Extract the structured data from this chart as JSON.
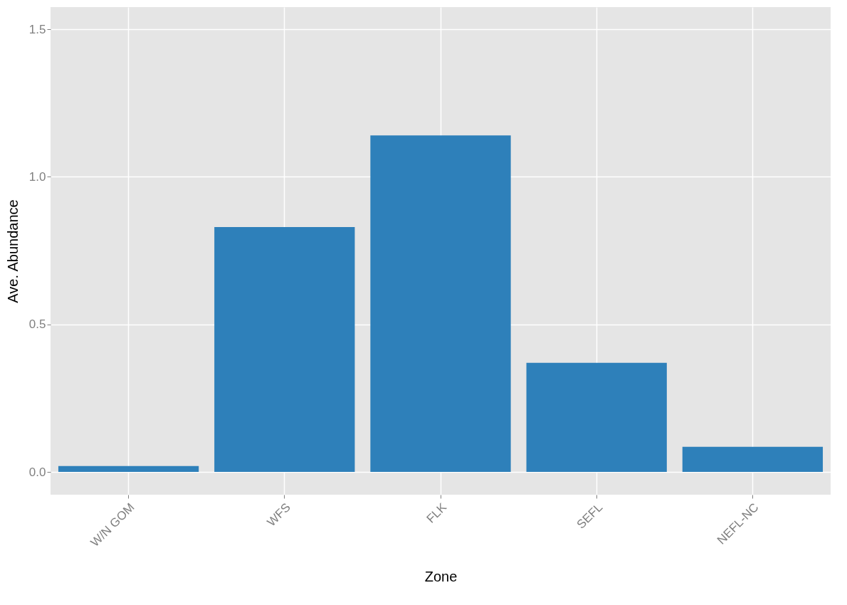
{
  "chart_data": {
    "type": "bar",
    "xlabel": "Zone",
    "ylabel": "Ave. Abundance",
    "categories": [
      "W/N GOM",
      "WFS",
      "FLK",
      "SEFL",
      "NEFL-NC"
    ],
    "values": [
      0.02,
      0.83,
      1.14,
      0.37,
      0.085
    ],
    "color": "#2e80ba",
    "ylim": [
      -0.077,
      1.575
    ],
    "yticks": [
      {
        "value": 0,
        "label": "0.0"
      },
      {
        "value": 0.5,
        "label": "0.5"
      },
      {
        "value": 1,
        "label": "1.0"
      },
      {
        "value": 1.5,
        "label": "1.5"
      }
    ],
    "grid": true
  }
}
